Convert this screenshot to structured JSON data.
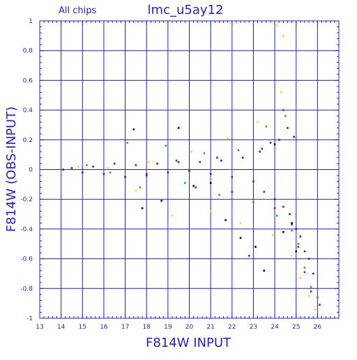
{
  "chart_data": {
    "type": "scatter",
    "title": "lmc_u5ay12",
    "subtitle": "All chips",
    "xlabel": "F814W INPUT",
    "ylabel": "F814W (OBS-INPUT)",
    "xlim": [
      13,
      27
    ],
    "ylim": [
      -1,
      1
    ],
    "x_ticks": [
      "13",
      "14",
      "15",
      "16",
      "17",
      "18",
      "19",
      "20",
      "21",
      "22",
      "23",
      "24",
      "25",
      "26"
    ],
    "y_ticks": [
      "-1",
      "-0.8",
      "-0.6",
      "-0.4",
      "-0.2",
      "0",
      "0.2",
      "0.4",
      "0.6",
      "0.8",
      "1"
    ],
    "grid": true,
    "series": [
      {
        "color": "#1f1fd6",
        "points": [
          [
            14.1,
            0.0
          ],
          [
            14.5,
            0.01
          ],
          [
            15.0,
            -0.02
          ],
          [
            15.5,
            0.02
          ],
          [
            16.0,
            -0.03
          ],
          [
            16.5,
            0.04
          ],
          [
            17.0,
            -0.05
          ],
          [
            17.5,
            0.03
          ],
          [
            18.0,
            -0.03
          ],
          [
            18.5,
            0.04
          ],
          [
            19.0,
            -0.02
          ],
          [
            19.5,
            0.05
          ],
          [
            20.0,
            -0.01
          ],
          [
            20.5,
            0.05
          ],
          [
            21.0,
            -0.03
          ],
          [
            21.5,
            0.06
          ],
          [
            22.0,
            -0.05
          ],
          [
            22.5,
            0.08
          ],
          [
            23.0,
            -0.08
          ],
          [
            23.3,
            0.12
          ],
          [
            23.5,
            -0.15
          ],
          [
            23.8,
            0.18
          ],
          [
            24.0,
            -0.2
          ],
          [
            24.2,
            0.2
          ],
          [
            24.4,
            -0.25
          ],
          [
            24.6,
            0.28
          ],
          [
            24.7,
            -0.3
          ],
          [
            24.9,
            0.22
          ],
          [
            25.0,
            -0.4
          ],
          [
            25.2,
            -0.45
          ],
          [
            25.4,
            -0.55
          ],
          [
            25.6,
            -0.6
          ],
          [
            25.8,
            -0.7
          ]
        ]
      },
      {
        "color": "#00c800",
        "points": [
          [
            15.2,
            0.03
          ],
          [
            16.3,
            -0.02
          ],
          [
            17.1,
            0.18
          ],
          [
            17.7,
            -0.12
          ],
          [
            18.9,
            0.16
          ],
          [
            19.8,
            -0.09
          ],
          [
            20.7,
            0.11
          ],
          [
            21.4,
            -0.17
          ],
          [
            22.3,
            0.13
          ],
          [
            23.0,
            -0.22
          ],
          [
            23.6,
            0.29
          ],
          [
            24.1,
            -0.31
          ],
          [
            24.5,
            0.36
          ],
          [
            24.8,
            -0.41
          ],
          [
            25.1,
            -0.5
          ],
          [
            25.4,
            -0.66
          ],
          [
            25.7,
            -0.79
          ],
          [
            26.0,
            -0.86
          ]
        ]
      },
      {
        "color": "#ffd600",
        "points": [
          [
            14.8,
            0.02
          ],
          [
            16.2,
            0.01
          ],
          [
            17.5,
            -0.14
          ],
          [
            18.1,
            0.05
          ],
          [
            19.2,
            -0.31
          ],
          [
            20.1,
            0.12
          ],
          [
            21.0,
            -0.28
          ],
          [
            21.8,
            0.21
          ],
          [
            22.4,
            -0.36
          ],
          [
            23.2,
            0.32
          ],
          [
            23.9,
            -0.44
          ],
          [
            24.3,
            0.52
          ],
          [
            24.8,
            -0.58
          ],
          [
            25.2,
            -0.73
          ],
          [
            25.6,
            -0.85
          ],
          [
            25.9,
            -0.94
          ],
          [
            24.4,
            0.9
          ],
          [
            24.1,
            0.97
          ]
        ]
      },
      {
        "color": "#e00000",
        "points": [
          [
            18.0,
            -0.04
          ],
          [
            19.4,
            0.06
          ],
          [
            20.3,
            -0.12
          ],
          [
            21.3,
            0.08
          ],
          [
            22.0,
            -0.15
          ],
          [
            22.8,
            -0.58
          ],
          [
            23.4,
            0.14
          ],
          [
            24.0,
            -0.26
          ],
          [
            24.4,
            0.4
          ],
          [
            24.8,
            -0.37
          ],
          [
            25.1,
            -0.52
          ],
          [
            25.4,
            -0.69
          ],
          [
            25.7,
            -0.82
          ],
          [
            26.1,
            -0.91
          ]
        ]
      },
      {
        "color": "#000000",
        "points": [
          [
            17.4,
            0.27
          ],
          [
            17.8,
            -0.26
          ],
          [
            18.7,
            -0.21
          ],
          [
            19.5,
            0.28
          ],
          [
            20.2,
            -0.11
          ],
          [
            21.0,
            -0.09
          ],
          [
            21.7,
            -0.34
          ],
          [
            22.4,
            -0.46
          ],
          [
            23.1,
            -0.52
          ],
          [
            23.5,
            -0.68
          ],
          [
            24.0,
            0.17
          ],
          [
            24.4,
            -0.42
          ],
          [
            24.8,
            -0.36
          ],
          [
            25.0,
            -0.55
          ]
        ]
      }
    ]
  }
}
